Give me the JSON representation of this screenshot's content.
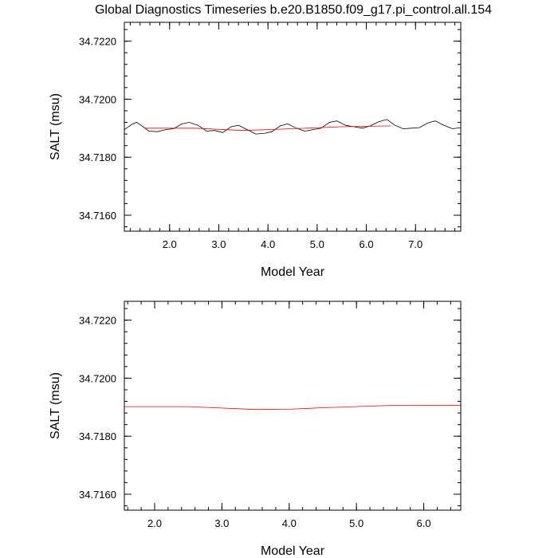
{
  "title": "Global Diagnostics Timeseries b.e20.B1850.f09_g17.pi_control.all.154",
  "colors": {
    "raw_line": "#000000",
    "smooth_line": "#ff0000",
    "frame": "#000000"
  },
  "chart_data": [
    {
      "type": "line",
      "xlabel": "Model Year",
      "ylabel": "SALT (msu)",
      "xlim": [
        1.08,
        7.92
      ],
      "ylim": [
        34.71545,
        34.72265
      ],
      "xticks": [
        2.0,
        3.0,
        4.0,
        5.0,
        6.0,
        7.0
      ],
      "xtick_labels": [
        "2.0",
        "3.0",
        "4.0",
        "5.0",
        "6.0",
        "7.0"
      ],
      "yticks": [
        34.716,
        34.718,
        34.72,
        34.722
      ],
      "ytick_labels": [
        "34.7160",
        "34.7180",
        "34.7200",
        "34.7220"
      ],
      "series": [
        {
          "role": "monthly",
          "color": "#000000",
          "x": [
            1.08,
            1.25,
            1.33,
            1.42,
            1.58,
            1.75,
            1.92,
            2.08,
            2.25,
            2.4,
            2.58,
            2.75,
            2.92,
            3.08,
            3.25,
            3.4,
            3.58,
            3.75,
            3.92,
            4.08,
            4.25,
            4.4,
            4.58,
            4.75,
            4.92,
            5.08,
            5.25,
            5.4,
            5.58,
            5.75,
            5.92,
            6.08,
            6.25,
            6.42,
            6.58,
            6.75,
            6.92,
            7.08,
            7.25,
            7.4,
            7.58,
            7.75,
            7.92
          ],
          "y": [
            34.71895,
            34.71915,
            34.7192,
            34.7191,
            34.7189,
            34.71888,
            34.71895,
            34.71898,
            34.71915,
            34.7192,
            34.7191,
            34.7189,
            34.71892,
            34.71885,
            34.71905,
            34.7191,
            34.71895,
            34.7188,
            34.71882,
            34.71888,
            34.71908,
            34.71915,
            34.719,
            34.7189,
            34.71895,
            34.719,
            34.7192,
            34.71925,
            34.7191,
            34.71905,
            34.719,
            34.71908,
            34.71922,
            34.7193,
            34.7191,
            34.71898,
            34.719,
            34.71902,
            34.71918,
            34.71925,
            34.7191,
            34.71898,
            34.71902
          ]
        },
        {
          "role": "annual",
          "color": "#ff0000",
          "x": [
            1.5,
            2.5,
            3.5,
            4.5,
            5.5,
            6.5
          ],
          "y": [
            34.719,
            34.719,
            34.71892,
            34.71898,
            34.71905,
            34.71908
          ]
        }
      ]
    },
    {
      "type": "line",
      "xlabel": "Model Year",
      "ylabel": "SALT (msu)",
      "xlim": [
        1.55,
        6.55
      ],
      "ylim": [
        34.71545,
        34.72265
      ],
      "xticks": [
        2.0,
        3.0,
        4.0,
        5.0,
        6.0
      ],
      "xtick_labels": [
        "2.0",
        "3.0",
        "4.0",
        "5.0",
        "6.0"
      ],
      "yticks": [
        34.716,
        34.718,
        34.72,
        34.722
      ],
      "ytick_labels": [
        "34.7160",
        "34.7180",
        "34.7200",
        "34.7220"
      ],
      "series": [
        {
          "role": "annual",
          "color": "#ff0000",
          "x": [
            1.55,
            2.5,
            3.5,
            4.0,
            4.5,
            5.5,
            6.55
          ],
          "y": [
            34.71902,
            34.71902,
            34.71892,
            34.71893,
            34.71898,
            34.71906,
            34.71907
          ]
        }
      ]
    }
  ]
}
